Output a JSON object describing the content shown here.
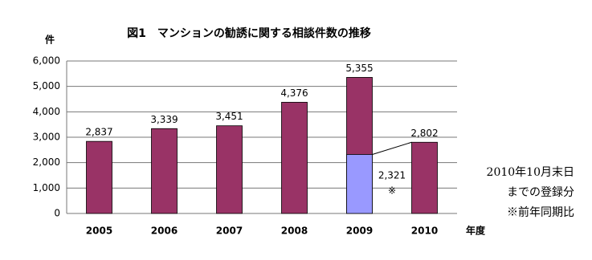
{
  "chart_data": {
    "type": "bar",
    "title": "図1　マンションの勧誘に関する相談件数の推移",
    "y_label": "件",
    "x_label": "年度",
    "categories": [
      "2005",
      "2006",
      "2007",
      "2008",
      "2009",
      "2010"
    ],
    "values": [
      2837,
      3339,
      3451,
      4376,
      5355,
      2802
    ],
    "value_labels": [
      "2,837",
      "3,339",
      "3,451",
      "4,376",
      "5,355",
      "2,802"
    ],
    "color": "#993366",
    "comparison": {
      "category": "2009",
      "value": 2321,
      "value_label": "2,321",
      "mark": "※",
      "color": "#9999ff"
    },
    "ylim": [
      0,
      6000
    ],
    "yticks": [
      0,
      {
        "value": 1000,
        "label": "1,000"
      },
      {
        "value": 2000,
        "label": "2,000"
      },
      {
        "value": 3000,
        "label": "3,000"
      },
      {
        "value": 4000,
        "label": "4,000"
      },
      {
        "value": 5000,
        "label": "5,000"
      },
      {
        "value": 6000,
        "label": "6,000"
      }
    ],
    "grid": true,
    "note": [
      "2010年10月末日",
      "までの登録分",
      "※前年同期比"
    ]
  }
}
